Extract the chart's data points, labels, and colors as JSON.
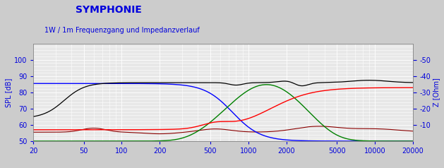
{
  "title": "SYMPHONIE",
  "subtitle": "1W / 1m Frequenzgang und Impedanzverlauf",
  "ylabel_left": "SPL [dB]",
  "ylabel_right": "Z [Ohm]",
  "spl_ylim": [
    50,
    110
  ],
  "spl_yticks": [
    50,
    60,
    70,
    80,
    90,
    100
  ],
  "freq_min": 20,
  "freq_max": 20000,
  "title_color": "#0000dd",
  "subtitle_color": "#0000dd",
  "axis_label_color": "#0000dd",
  "tick_label_color": "#0000dd",
  "bg_color": "#cccccc",
  "grid_color": "#ffffff",
  "plot_bg_color": "#e8e8e8",
  "title_fontsize": 10,
  "subtitle_fontsize": 7,
  "axis_fontsize": 7
}
